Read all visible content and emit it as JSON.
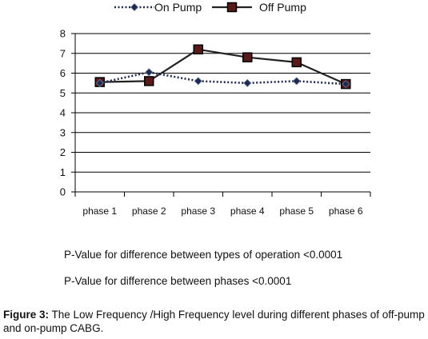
{
  "chart_data": {
    "type": "line",
    "categories": [
      "phase 1",
      "phase 2",
      "phase 3",
      "phase 4",
      "phase 5",
      "phase 6"
    ],
    "series": [
      {
        "name": "On Pump",
        "values": [
          5.5,
          6.05,
          5.6,
          5.5,
          5.6,
          5.45
        ],
        "color": "#1f2b4d",
        "line_style": "dotted",
        "marker": "diamond"
      },
      {
        "name": "Off Pump",
        "values": [
          5.55,
          5.6,
          7.2,
          6.8,
          6.55,
          5.45
        ],
        "color": "#222222",
        "marker_fill": "#5a1a1a",
        "line_style": "solid",
        "marker": "square"
      }
    ],
    "ylim": [
      0,
      8
    ],
    "yticks": [
      0,
      1,
      2,
      3,
      4,
      5,
      6,
      7,
      8
    ],
    "grid": true,
    "legend_position": "top"
  },
  "notes": [
    "P-Value for difference between types of operation <0.0001",
    "P-Value for difference between phases <0.0001"
  ],
  "caption": {
    "label": "Figure 3:",
    "text": " The Low Frequency /High Frequency level during different phases of off-pump and on-pump CABG."
  }
}
